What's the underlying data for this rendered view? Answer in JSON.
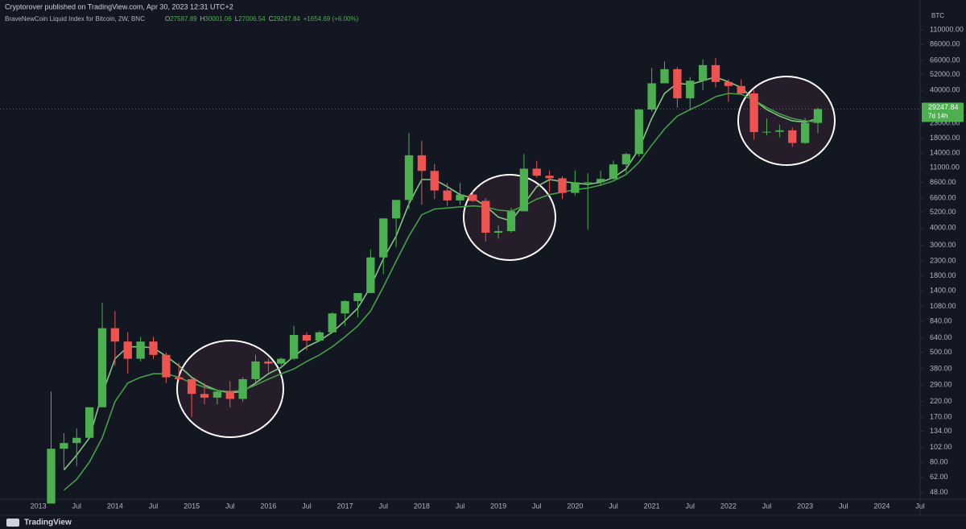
{
  "header": {
    "publisher": "Cryptorover published on TradingView.com, Apr 30, 2023 12:31 UTC+2"
  },
  "footer": {
    "brand": "TradingView"
  },
  "chart_data": {
    "type": "candlestick",
    "title": "BraveNewCoin Liquid Index for Bitcoin, 2W, BNC",
    "ohlc_legend": [
      {
        "key": "O",
        "value": 27587.89
      },
      {
        "key": "H",
        "value": 30001.06
      },
      {
        "key": "L",
        "value": 27006.54
      },
      {
        "key": "C",
        "value": 29247.84
      }
    ],
    "change": "+1654.69 (+6.00%)",
    "currency": "BTC",
    "last_price": {
      "value": 29247.84,
      "label": "29247.84"
    },
    "countdown": "7d 14h",
    "log_scale": true,
    "grid": false,
    "up_color": "#4caf50",
    "down_color": "#ef5350",
    "xlim": [
      "2012-07",
      "2024-07"
    ],
    "ylim": [
      43,
      148000
    ],
    "xticks": [
      {
        "value": "2013-01",
        "label": "2013"
      },
      {
        "value": "2013-07",
        "label": "Jul"
      },
      {
        "value": "2014-01",
        "label": "2014"
      },
      {
        "value": "2014-07",
        "label": "Jul"
      },
      {
        "value": "2015-01",
        "label": "2015"
      },
      {
        "value": "2015-07",
        "label": "Jul"
      },
      {
        "value": "2016-01",
        "label": "2016"
      },
      {
        "value": "2016-07",
        "label": "Jul"
      },
      {
        "value": "2017-01",
        "label": "2017"
      },
      {
        "value": "2017-07",
        "label": "Jul"
      },
      {
        "value": "2018-01",
        "label": "2018"
      },
      {
        "value": "2018-07",
        "label": "Jul"
      },
      {
        "value": "2019-01",
        "label": "2019"
      },
      {
        "value": "2019-07",
        "label": "Jul"
      },
      {
        "value": "2020-01",
        "label": "2020"
      },
      {
        "value": "2020-07",
        "label": "Jul"
      },
      {
        "value": "2021-01",
        "label": "2021"
      },
      {
        "value": "2021-07",
        "label": "Jul"
      },
      {
        "value": "2022-01",
        "label": "2022"
      },
      {
        "value": "2022-07",
        "label": "Jul"
      },
      {
        "value": "2023-01",
        "label": "2023"
      },
      {
        "value": "2023-07",
        "label": "Jul"
      },
      {
        "value": "2024-01",
        "label": "2024"
      },
      {
        "value": "2024-07",
        "label": "Jul"
      }
    ],
    "yticks": [
      {
        "value": 110000,
        "label": "110000.00"
      },
      {
        "value": 86000,
        "label": "86000.00"
      },
      {
        "value": 66000,
        "label": "66000.00"
      },
      {
        "value": 52000,
        "label": "52000.00"
      },
      {
        "value": 40000,
        "label": "40000.00"
      },
      {
        "value": 23000,
        "label": "23000.00"
      },
      {
        "value": 18000,
        "label": "18000.00"
      },
      {
        "value": 14000,
        "label": "14000.00"
      },
      {
        "value": 11000,
        "label": "11000.00"
      },
      {
        "value": 8600,
        "label": "8600.00"
      },
      {
        "value": 6600,
        "label": "6600.00"
      },
      {
        "value": 5200,
        "label": "5200.00"
      },
      {
        "value": 4000,
        "label": "4000.00"
      },
      {
        "value": 3000,
        "label": "3000.00"
      },
      {
        "value": 2300,
        "label": "2300.00"
      },
      {
        "value": 1800,
        "label": "1800.00"
      },
      {
        "value": 1400,
        "label": "1400.00"
      },
      {
        "value": 1080,
        "label": "1080.00"
      },
      {
        "value": 840,
        "label": "840.00"
      },
      {
        "value": 640,
        "label": "640.00"
      },
      {
        "value": 500,
        "label": "500.00"
      },
      {
        "value": 380,
        "label": "380.00"
      },
      {
        "value": 290,
        "label": "290.00"
      },
      {
        "value": 220,
        "label": "220.00"
      },
      {
        "value": 170,
        "label": "170.00"
      },
      {
        "value": 134,
        "label": "134.00"
      },
      {
        "value": 102,
        "label": "102.00"
      },
      {
        "value": 80,
        "label": "80.00"
      },
      {
        "value": 62,
        "label": "62.00"
      },
      {
        "value": 48,
        "label": "48.00"
      }
    ],
    "x": [
      "2013-03",
      "2013-05",
      "2013-07",
      "2013-09",
      "2013-11",
      "2014-01",
      "2014-03",
      "2014-05",
      "2014-07",
      "2014-09",
      "2014-11",
      "2015-01",
      "2015-03",
      "2015-05",
      "2015-07",
      "2015-09",
      "2015-11",
      "2016-01",
      "2016-03",
      "2016-05",
      "2016-07",
      "2016-09",
      "2016-11",
      "2017-01",
      "2017-03",
      "2017-05",
      "2017-07",
      "2017-09",
      "2017-11",
      "2018-01",
      "2018-03",
      "2018-05",
      "2018-07",
      "2018-09",
      "2018-11",
      "2019-01",
      "2019-03",
      "2019-05",
      "2019-07",
      "2019-09",
      "2019-11",
      "2020-01",
      "2020-03",
      "2020-05",
      "2020-07",
      "2020-09",
      "2020-11",
      "2021-01",
      "2021-03",
      "2021-05",
      "2021-07",
      "2021-09",
      "2021-11",
      "2022-01",
      "2022-03",
      "2022-05",
      "2022-07",
      "2022-09",
      "2022-11",
      "2023-01",
      "2023-03"
    ],
    "open": [
      40,
      100,
      110,
      120,
      200,
      750,
      600,
      450,
      600,
      480,
      330,
      320,
      250,
      235,
      260,
      230,
      320,
      430,
      415,
      450,
      670,
      610,
      700,
      960,
      1180,
      1350,
      2450,
      4700,
      6400,
      13500,
      10400,
      7500,
      6350,
      7000,
      6300,
      3700,
      3800,
      5300,
      10800,
      9600,
      9200,
      7200,
      8600,
      8600,
      9100,
      11600,
      13800,
      29000,
      45000,
      57000,
      35000,
      47000,
      61000,
      46000,
      43000,
      38000,
      19900,
      20000,
      20500,
      16600,
      23200
    ],
    "high": [
      260,
      130,
      140,
      200,
      1150,
      1000,
      700,
      650,
      650,
      500,
      420,
      330,
      300,
      265,
      310,
      330,
      480,
      450,
      460,
      780,
      700,
      720,
      980,
      1200,
      1350,
      2800,
      4700,
      6400,
      19600,
      17200,
      11700,
      8500,
      8500,
      7400,
      6600,
      4200,
      5600,
      13800,
      12300,
      10500,
      9500,
      10500,
      10000,
      10400,
      12400,
      14100,
      29300,
      58000,
      64800,
      59000,
      50000,
      67000,
      69000,
      48000,
      48000,
      40000,
      25000,
      22500,
      21500,
      25200,
      30000
    ],
    "low": [
      40,
      70,
      75,
      120,
      200,
      400,
      350,
      430,
      450,
      300,
      310,
      170,
      210,
      210,
      200,
      220,
      300,
      360,
      400,
      440,
      520,
      600,
      690,
      780,
      900,
      1350,
      1850,
      2900,
      5500,
      5900,
      6500,
      5800,
      5900,
      6200,
      3200,
      3350,
      3700,
      5300,
      9300,
      7300,
      6500,
      6900,
      3900,
      8100,
      9000,
      10000,
      13200,
      28000,
      46000,
      30000,
      29000,
      40000,
      42000,
      33000,
      37000,
      17600,
      18800,
      18200,
      15500,
      16300,
      19500
    ],
    "close": [
      100,
      110,
      120,
      200,
      750,
      600,
      450,
      600,
      480,
      330,
      320,
      250,
      235,
      260,
      230,
      320,
      430,
      415,
      450,
      670,
      610,
      700,
      960,
      1180,
      1350,
      2450,
      4700,
      6400,
      13500,
      10400,
      7500,
      6350,
      7000,
      6300,
      3700,
      3800,
      5300,
      10800,
      9600,
      9200,
      7200,
      8600,
      8600,
      9100,
      11600,
      13800,
      29000,
      45000,
      57000,
      35000,
      47000,
      61000,
      46000,
      43000,
      38000,
      19900,
      20000,
      20500,
      16600,
      23200,
      29247.84
    ],
    "ribbons": [
      {
        "color": "#81c784",
        "values": [
          null,
          70,
          90,
          120,
          250,
          450,
          550,
          550,
          540,
          470,
          400,
          330,
          290,
          265,
          255,
          260,
          300,
          350,
          390,
          470,
          550,
          610,
          700,
          850,
          1050,
          1500,
          2400,
          3500,
          6000,
          9000,
          9000,
          8000,
          7000,
          6600,
          5800,
          4800,
          4500,
          6000,
          8000,
          9000,
          8700,
          8500,
          8300,
          8600,
          9300,
          10800,
          15000,
          25000,
          38000,
          45000,
          44000,
          47000,
          50000,
          46000,
          42000,
          34000,
          29000,
          26000,
          24000,
          23500,
          25000
        ]
      },
      {
        "color": "#43a047",
        "values": [
          null,
          50,
          60,
          80,
          120,
          220,
          300,
          330,
          350,
          350,
          330,
          300,
          280,
          265,
          260,
          265,
          290,
          320,
          350,
          380,
          430,
          480,
          550,
          650,
          780,
          1000,
          1500,
          2300,
          3500,
          5000,
          5500,
          5600,
          5700,
          5800,
          5700,
          5400,
          5300,
          5800,
          6500,
          7000,
          7300,
          7600,
          7800,
          8200,
          8800,
          9800,
          12000,
          16000,
          21000,
          26000,
          29000,
          32000,
          36000,
          38000,
          37500,
          34000,
          30000,
          27000,
          25000,
          24000,
          23500
        ]
      }
    ]
  }
}
